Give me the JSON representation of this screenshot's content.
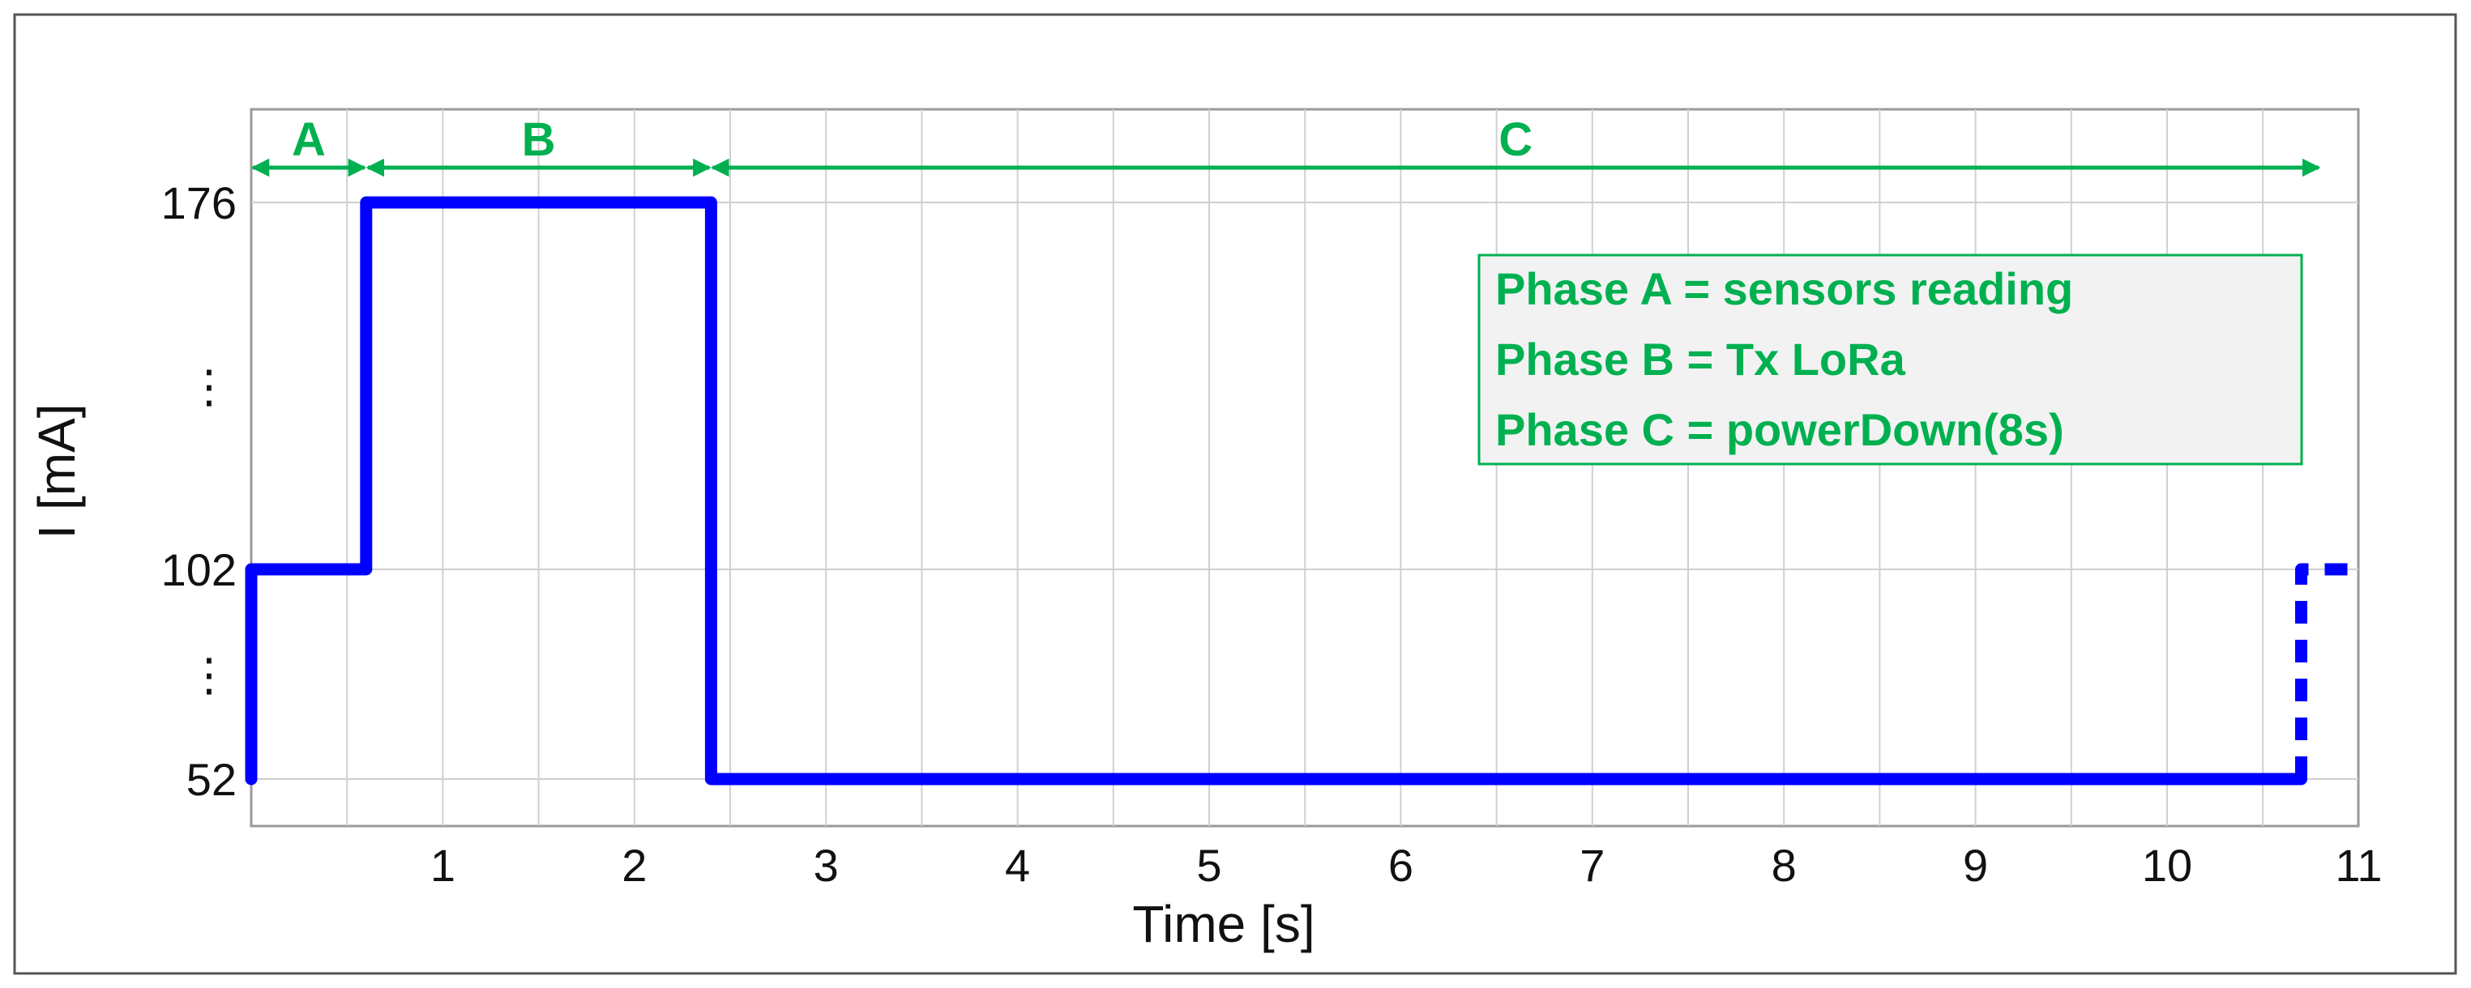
{
  "colors": {
    "series": "#0000ff",
    "phase": "#00b050",
    "grid": "#d0d0d0",
    "legend_bg": "#f2f2f2"
  },
  "chart_data": {
    "type": "line",
    "xlabel": "Time [s]",
    "ylabel": "I [mA]",
    "xlim": [
      0,
      11
    ],
    "x_ticks": [
      1,
      2,
      3,
      4,
      5,
      6,
      7,
      8,
      9,
      10,
      11
    ],
    "x_tick_labels": [
      "1",
      "2",
      "3",
      "4",
      "5",
      "6",
      "7",
      "8",
      "9",
      "10",
      "11"
    ],
    "y_ticks": [
      52,
      102,
      176
    ],
    "y_tick_labels": [
      "52",
      "102",
      "176"
    ],
    "y_ellipsis": [
      "⋮",
      "⋮"
    ],
    "grid": true,
    "series": [
      {
        "style": "solid",
        "x": [
          0,
          0,
          0.6,
          0.6,
          2.4,
          2.4,
          10.7
        ],
        "y": [
          52,
          102,
          102,
          176,
          176,
          52,
          52
        ]
      },
      {
        "style": "dashed",
        "x": [
          10.7,
          10.7,
          11.0
        ],
        "y": [
          52,
          102,
          102
        ]
      }
    ],
    "phases": [
      {
        "label": "A",
        "start": 0,
        "end": 0.6
      },
      {
        "label": "B",
        "start": 0.6,
        "end": 2.4
      },
      {
        "label": "C",
        "start": 2.4,
        "end": 10.8
      }
    ],
    "legend": {
      "placement": "top-right",
      "lines": [
        "Phase A = sensors reading",
        "Phase B = Tx LoRa",
        "Phase C = powerDown(8s)"
      ]
    }
  }
}
